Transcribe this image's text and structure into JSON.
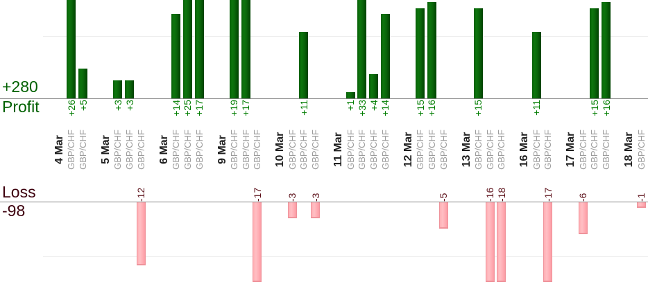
{
  "chart_data": {
    "type": "bar",
    "instrument": "GBP/CHF",
    "profit_section": {
      "label": "Profit",
      "total": "+280",
      "gridline_value": 10,
      "visible_range": [
        0,
        16
      ],
      "bars_clipped_at_top": true
    },
    "loss_section": {
      "label": "Loss",
      "total": "-98",
      "gridline_value": -10,
      "visible_range": [
        0,
        -15
      ],
      "bars_clipped_at_bottom": true
    },
    "groups": [
      {
        "date": "4 Mar",
        "trades": [
          {
            "symbol": "GBP/CHF",
            "pl": 26,
            "label": "+26"
          },
          {
            "symbol": "GBP/CHF",
            "pl": 5,
            "label": "+5"
          }
        ]
      },
      {
        "date": "5 Mar",
        "trades": [
          {
            "symbol": "GBP/CHF",
            "pl": 3,
            "label": "+3"
          },
          {
            "symbol": "GBP/CHF",
            "pl": 3,
            "label": "+3"
          },
          {
            "symbol": "GBP/CHF",
            "pl": -12,
            "label": "-12"
          }
        ]
      },
      {
        "date": "6 Mar",
        "trades": [
          {
            "symbol": "GBP/CHF",
            "pl": 14,
            "label": "+14"
          },
          {
            "symbol": "GBP/CHF",
            "pl": 25,
            "label": "+25"
          },
          {
            "symbol": "GBP/CHF",
            "pl": 17,
            "label": "+17"
          }
        ]
      },
      {
        "date": "9 Mar",
        "trades": [
          {
            "symbol": "GBP/CHF",
            "pl": 19,
            "label": "+19"
          },
          {
            "symbol": "GBP/CHF",
            "pl": 17,
            "label": "+17"
          },
          {
            "symbol": "GBP/CHF",
            "pl": -17,
            "label": "-17"
          }
        ]
      },
      {
        "date": "10 Mar",
        "trades": [
          {
            "symbol": "GBP/CHF",
            "pl": -3,
            "label": "-3"
          },
          {
            "symbol": "GBP/CHF",
            "pl": 11,
            "label": "+11"
          },
          {
            "symbol": "GBP/CHF",
            "pl": -3,
            "label": "-3"
          }
        ]
      },
      {
        "date": "11 Mar",
        "trades": [
          {
            "symbol": "GBP/CHF",
            "pl": 1,
            "label": "+1"
          },
          {
            "symbol": "GBP/CHF",
            "pl": 33,
            "label": "+33"
          },
          {
            "symbol": "GBP/CHF",
            "pl": 4,
            "label": "+4"
          },
          {
            "symbol": "GBP/CHF",
            "pl": 14,
            "label": "+14"
          }
        ]
      },
      {
        "date": "12 Mar",
        "trades": [
          {
            "symbol": "GBP/CHF",
            "pl": 15,
            "label": "+15"
          },
          {
            "symbol": "GBP/CHF",
            "pl": 16,
            "label": "+16"
          },
          {
            "symbol": "GBP/CHF",
            "pl": -5,
            "label": "-5"
          }
        ]
      },
      {
        "date": "13 Mar",
        "trades": [
          {
            "symbol": "GBP/CHF",
            "pl": 15,
            "label": "+15"
          },
          {
            "symbol": "GBP/CHF",
            "pl": -16,
            "label": "-16"
          },
          {
            "symbol": "GBP/CHF",
            "pl": -18,
            "label": "-18"
          }
        ]
      },
      {
        "date": "16 Mar",
        "trades": [
          {
            "symbol": "GBP/CHF",
            "pl": 11,
            "label": "+11"
          },
          {
            "symbol": "GBP/CHF",
            "pl": -17,
            "label": "-17"
          }
        ]
      },
      {
        "date": "17 Mar",
        "trades": [
          {
            "symbol": "GBP/CHF",
            "pl": -6,
            "label": "-6"
          },
          {
            "symbol": "GBP/CHF",
            "pl": 15,
            "label": "+15"
          },
          {
            "symbol": "GBP/CHF",
            "pl": 16,
            "label": "+16"
          }
        ]
      },
      {
        "date": "18 Mar",
        "trades": [
          {
            "symbol": "GBP/CHF",
            "pl": -1,
            "label": "-1"
          }
        ]
      }
    ],
    "colors": {
      "profit_bar": "#0a6b0a",
      "loss_bar": "#ffb0b6",
      "profit_header": "#006000",
      "loss_header": "#3d000d",
      "profit_value_text": "#007d00",
      "loss_value_text": "#5c1019",
      "date_label": "#1f1f1f",
      "symbol_label": "#9b9b9b",
      "axis_line": "#828282",
      "gridline": "#ededed"
    }
  }
}
